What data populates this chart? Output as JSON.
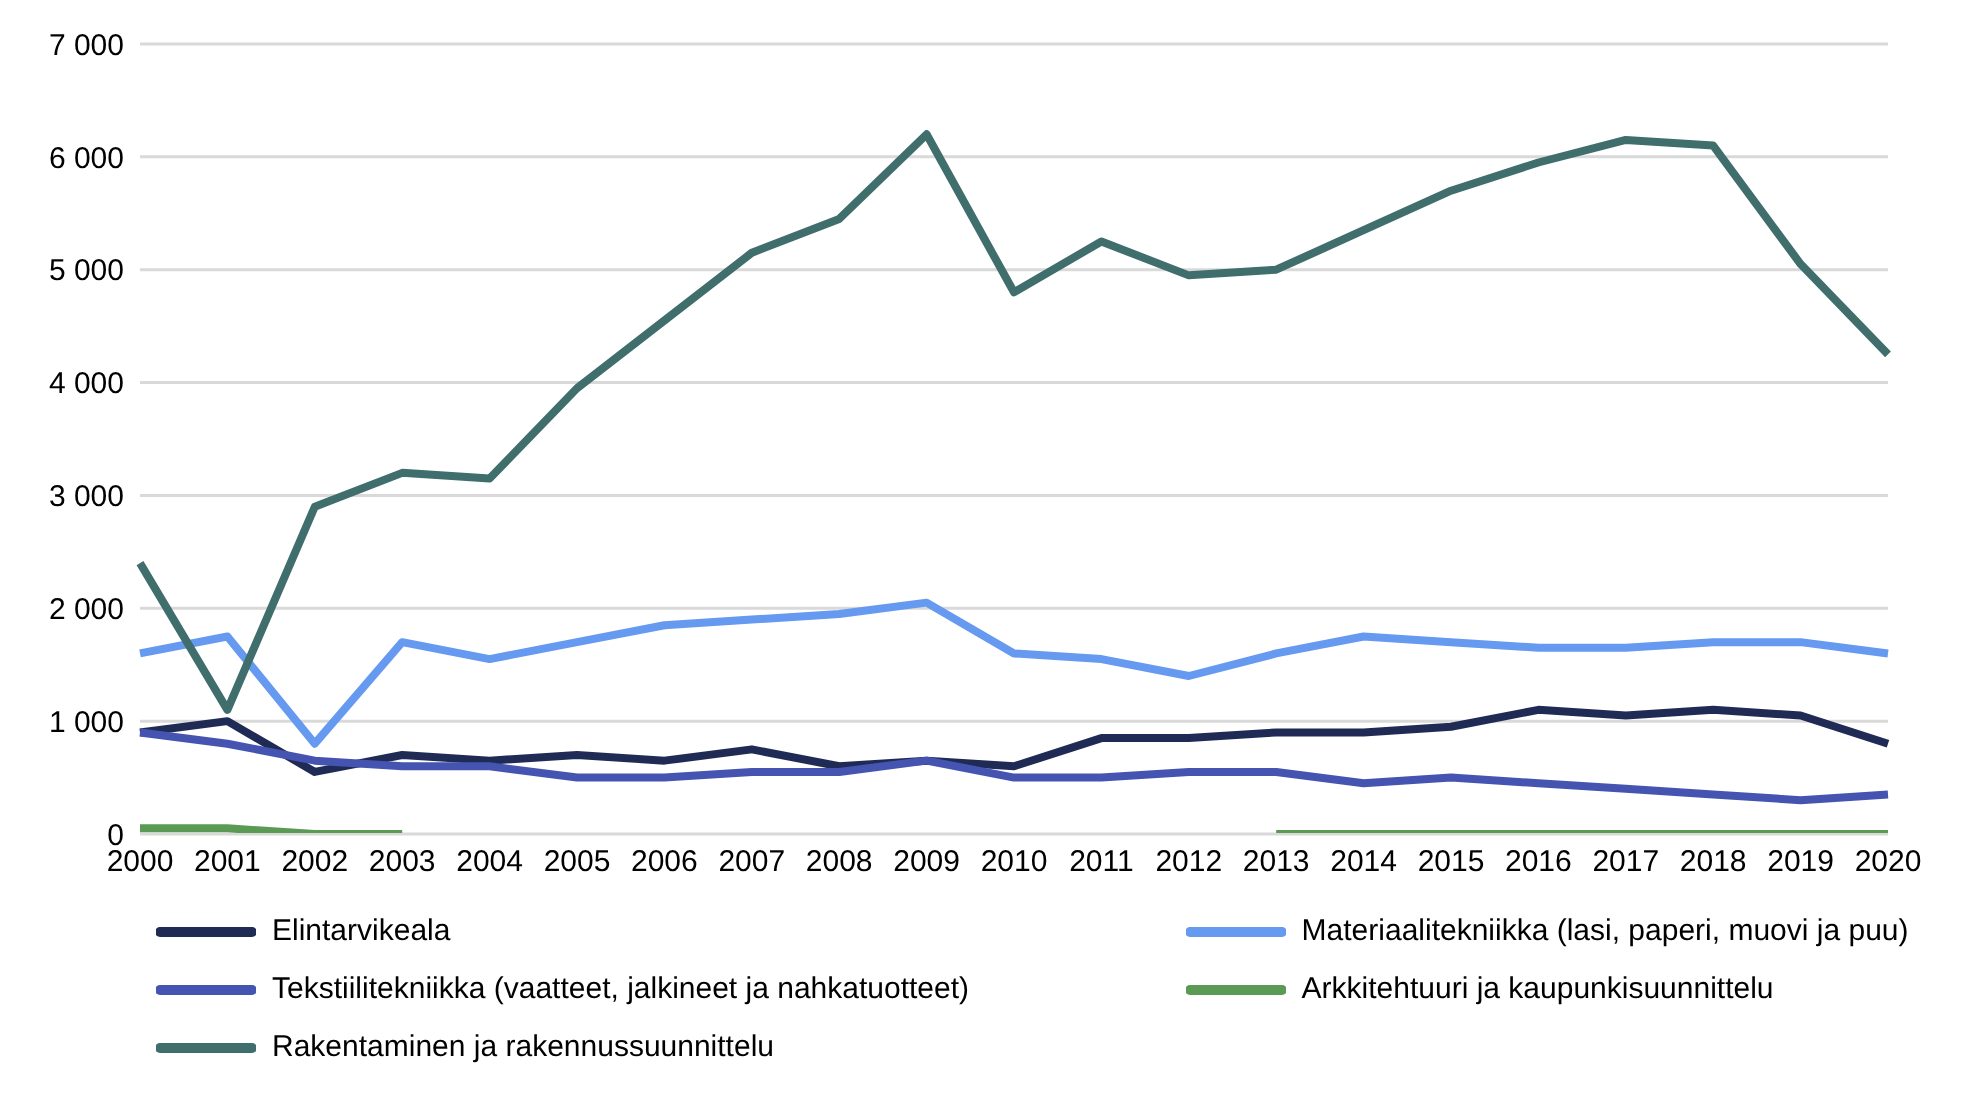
{
  "chart_data": {
    "type": "line",
    "categories": [
      "2000",
      "2001",
      "2002",
      "2003",
      "2004",
      "2005",
      "2006",
      "2007",
      "2008",
      "2009",
      "2010",
      "2011",
      "2012",
      "2013",
      "2014",
      "2015",
      "2016",
      "2017",
      "2018",
      "2019",
      "2020"
    ],
    "series": [
      {
        "name": "Elintarvikeala",
        "color": "#1f2b55",
        "values": [
          900,
          1000,
          550,
          700,
          650,
          700,
          650,
          750,
          600,
          650,
          600,
          850,
          850,
          900,
          900,
          950,
          1100,
          1050,
          1100,
          1050,
          800
        ]
      },
      {
        "name": "Materiaalitekniikka (lasi, paperi, muovi ja puu)",
        "color": "#6699f0",
        "values": [
          1600,
          1750,
          800,
          1700,
          1550,
          1700,
          1850,
          1900,
          1950,
          2050,
          1600,
          1550,
          1400,
          1600,
          1750,
          1700,
          1650,
          1650,
          1700,
          1700,
          1600
        ]
      },
      {
        "name": "Tekstiilitekniikka (vaatteet, jalkineet ja nahkatuotteet)",
        "color": "#4454b0",
        "values": [
          900,
          800,
          650,
          600,
          600,
          500,
          500,
          550,
          550,
          650,
          500,
          500,
          550,
          550,
          450,
          500,
          450,
          400,
          350,
          300,
          350
        ]
      },
      {
        "name": "Arkkitehtuuri ja kaupunkisuunnittelu",
        "color": "#5a9a55",
        "values": [
          50,
          50,
          0,
          0,
          null,
          null,
          null,
          null,
          null,
          null,
          null,
          null,
          null,
          0,
          0,
          0,
          0,
          0,
          0,
          0,
          0
        ]
      },
      {
        "name": "Rakentaminen ja rakennussuunnittelu",
        "color": "#3f6e6c",
        "values": [
          2400,
          1100,
          2900,
          3200,
          3150,
          3950,
          4550,
          5150,
          5450,
          6200,
          4800,
          5250,
          4950,
          5000,
          5350,
          5700,
          5950,
          6150,
          6100,
          5050,
          4250
        ]
      }
    ],
    "ylim": [
      0,
      7000
    ],
    "yticks": [
      {
        "value": 0,
        "label": "0"
      },
      {
        "value": 1000,
        "label": "1 000"
      },
      {
        "value": 2000,
        "label": "2 000"
      },
      {
        "value": 3000,
        "label": "3 000"
      },
      {
        "value": 4000,
        "label": "4 000"
      },
      {
        "value": 5000,
        "label": "5 000"
      },
      {
        "value": 6000,
        "label": "6 000"
      },
      {
        "value": 7000,
        "label": "7 000"
      }
    ],
    "grid": "y",
    "legend": "bottom",
    "marker": "none",
    "line_style": "solid"
  }
}
